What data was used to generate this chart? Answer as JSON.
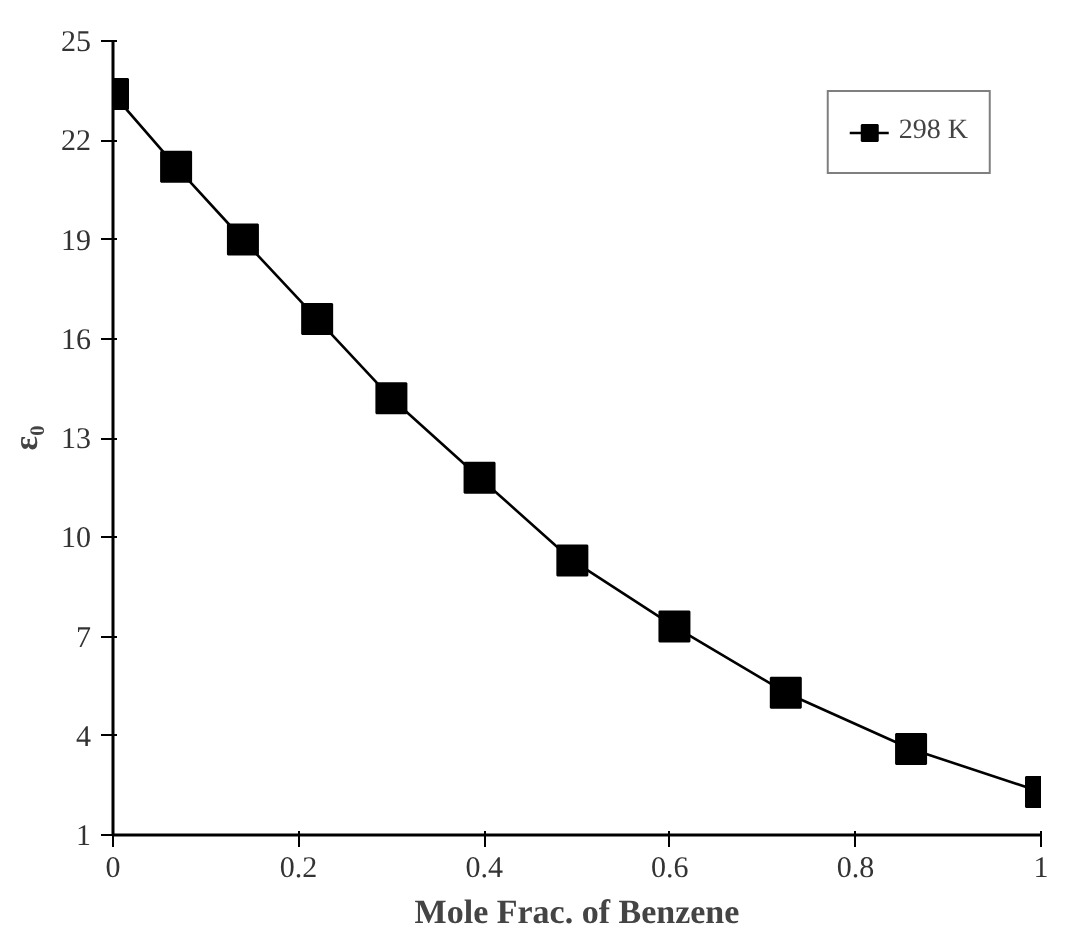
{
  "chart_data": {
    "type": "line",
    "xlabel": "Mole Frac. of Benzene",
    "ylabel": "ε₀",
    "x": [
      0,
      0.068,
      0.14,
      0.22,
      0.3,
      0.395,
      0.495,
      0.605,
      0.725,
      0.86,
      1.0
    ],
    "series": [
      {
        "name": "298 K",
        "color": "#000000",
        "values": [
          23.4,
          21.2,
          19.0,
          16.6,
          14.2,
          11.8,
          9.3,
          7.3,
          5.3,
          3.6,
          2.3
        ]
      }
    ],
    "xlim": [
      0,
      1
    ],
    "xticks": [
      0,
      0.2,
      0.4,
      0.6,
      0.8,
      1
    ],
    "ylim": [
      1,
      25
    ],
    "yticks": [
      1,
      4,
      7,
      10,
      13,
      16,
      19,
      22,
      25
    ],
    "marker": "square",
    "line_style": "solid",
    "legend": "top right",
    "grid": false
  }
}
